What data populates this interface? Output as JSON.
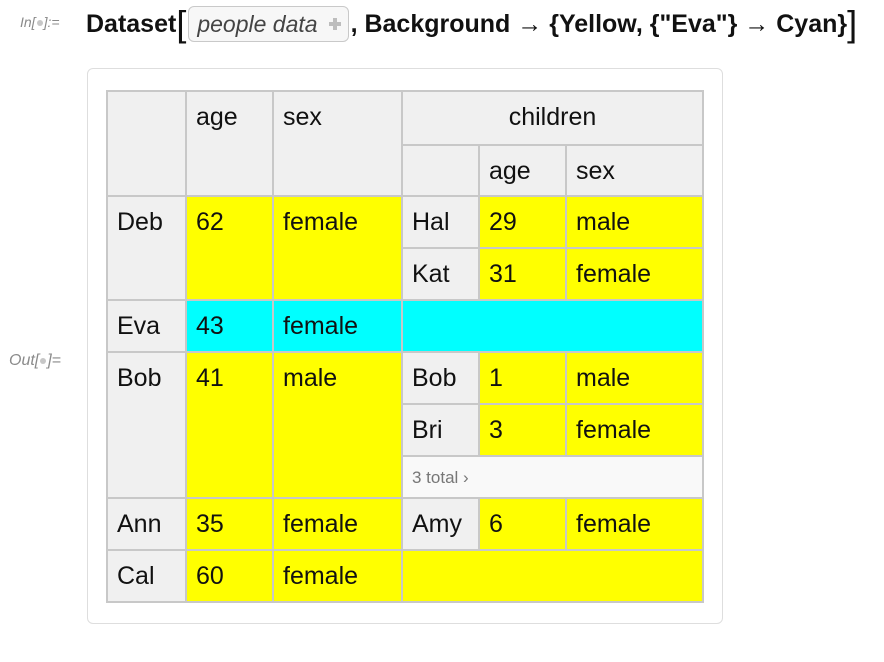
{
  "in_label": "In[",
  "in_label_suffix": "]:=",
  "out_label": "Out[",
  "out_label_suffix": "]=",
  "input": {
    "func": "Dataset",
    "open_bracket": "[",
    "placeholder": "people data",
    "rest": ", Background → {Yellow, {\"Eva\"} → Cyan}",
    "close_bracket": "]"
  },
  "table": {
    "headers": {
      "age": "age",
      "sex": "sex",
      "children": "children",
      "child_age": "age",
      "child_sex": "sex"
    },
    "total_label": "3 total ›",
    "rows": [
      {
        "name": "Deb",
        "age": "62",
        "sex": "female",
        "children": [
          {
            "name": "Hal",
            "age": "29",
            "sex": "male"
          },
          {
            "name": "Kat",
            "age": "31",
            "sex": "female"
          }
        ]
      },
      {
        "name": "Eva",
        "age": "43",
        "sex": "female",
        "children": []
      },
      {
        "name": "Bob",
        "age": "41",
        "sex": "male",
        "children": [
          {
            "name": "Bob",
            "age": "1",
            "sex": "male"
          },
          {
            "name": "Bri",
            "age": "3",
            "sex": "female"
          }
        ]
      },
      {
        "name": "Ann",
        "age": "35",
        "sex": "female",
        "children": [
          {
            "name": "Amy",
            "age": "6",
            "sex": "female"
          }
        ]
      },
      {
        "name": "Cal",
        "age": "60",
        "sex": "female",
        "children": []
      }
    ]
  },
  "colors": {
    "background": "#ffff00",
    "highlight": "#00ffff"
  }
}
